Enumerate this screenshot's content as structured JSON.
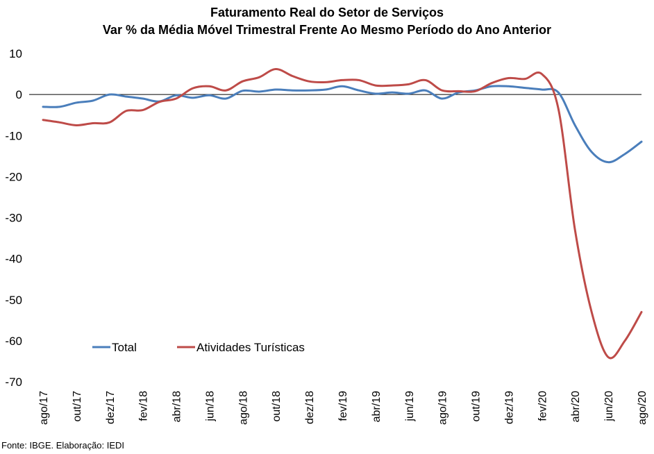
{
  "chart_data": {
    "type": "line",
    "title": "Faturamento Real do Setor de Serviços",
    "subtitle": "Var % da Média Móvel Trimestral Frente Ao Mesmo Período do Ano Anterior",
    "xlabel": "",
    "ylabel": "",
    "ylim": [
      -70,
      10
    ],
    "yticks": [
      10,
      0,
      -10,
      -20,
      -30,
      -40,
      -50,
      -60,
      -70
    ],
    "grid": false,
    "legend_position": "bottom-left",
    "categories": [
      "ago/17",
      "set/17",
      "out/17",
      "nov/17",
      "dez/17",
      "jan/18",
      "fev/18",
      "mar/18",
      "abr/18",
      "mai/18",
      "jun/18",
      "jul/18",
      "ago/18",
      "set/18",
      "out/18",
      "nov/18",
      "dez/18",
      "jan/19",
      "fev/19",
      "mar/19",
      "abr/19",
      "mai/19",
      "jun/19",
      "jul/19",
      "ago/19",
      "set/19",
      "out/19",
      "nov/19",
      "dez/19",
      "jan/20",
      "fev/20",
      "mar/20",
      "abr/20",
      "mai/20",
      "jun/20",
      "jul/20",
      "ago/20"
    ],
    "x_tick_labels": [
      "ago/17",
      "out/17",
      "dez/17",
      "fev/18",
      "abr/18",
      "jun/18",
      "ago/18",
      "out/18",
      "dez/18",
      "fev/19",
      "abr/19",
      "jun/19",
      "ago/19",
      "out/19",
      "dez/19",
      "fev/20",
      "abr/20",
      "jun/20",
      "ago/20"
    ],
    "series": [
      {
        "name": "Total",
        "color": "#4a7ebb",
        "values": [
          -3.0,
          -3.0,
          -2.0,
          -1.5,
          0.0,
          -0.5,
          -1.0,
          -1.7,
          -0.2,
          -0.8,
          -0.2,
          -1.0,
          0.9,
          0.7,
          1.2,
          1.0,
          1.0,
          1.2,
          2.0,
          1.0,
          0.2,
          0.5,
          0.2,
          1.0,
          -1.0,
          0.5,
          1.0,
          2.0,
          2.0,
          1.6,
          1.2,
          0.5,
          -7.5,
          -14.0,
          -16.5,
          -14.5,
          -11.5
        ]
      },
      {
        "name": "Atividades Turísticas",
        "color": "#be4b48",
        "values": [
          -6.2,
          -6.8,
          -7.5,
          -7.0,
          -6.8,
          -4.0,
          -3.8,
          -1.8,
          -1.0,
          1.5,
          2.0,
          1.0,
          3.2,
          4.2,
          6.2,
          4.5,
          3.2,
          3.0,
          3.5,
          3.5,
          2.2,
          2.2,
          2.5,
          3.5,
          1.0,
          0.8,
          0.8,
          2.8,
          4.0,
          3.8,
          5.0,
          -3.5,
          -33.0,
          -53.0,
          -64.0,
          -60.0,
          -53.0
        ]
      }
    ]
  },
  "source": "Fonte: IBGE. Elaboração: IEDI"
}
